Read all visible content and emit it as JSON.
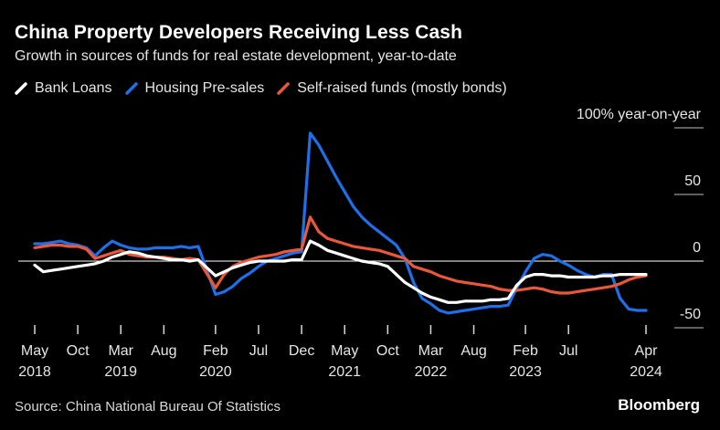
{
  "colors": {
    "background": "#000000",
    "bank_loans": "#ffffff",
    "housing_presales": "#1f6fe8",
    "self_raised": "#e8583a",
    "zero_line": "#ffffff"
  },
  "footer": {
    "source": "Source: China National Bureau Of Statistics",
    "brand": "Bloomberg"
  },
  "chart_data": {
    "type": "line",
    "title": "China Property Developers Receiving Less Cash",
    "subtitle": "Growth in sources of funds for real estate development, year-to-date",
    "ylabel": "year-on-year",
    "ylim": [
      -50,
      100
    ],
    "yticks": [
      {
        "value": 100,
        "label": "100% year-on-year"
      },
      {
        "value": 50,
        "label": "50"
      },
      {
        "value": 0,
        "label": "0"
      },
      {
        "value": -50,
        "label": "-50"
      }
    ],
    "xlim": [
      0,
      71
    ],
    "xticks": [
      {
        "value": 0,
        "line1": "May",
        "line2": "2018"
      },
      {
        "value": 5,
        "line1": "Oct",
        "line2": ""
      },
      {
        "value": 10,
        "line1": "Mar",
        "line2": "2019"
      },
      {
        "value": 15,
        "line1": "Aug",
        "line2": ""
      },
      {
        "value": 21,
        "line1": "Feb",
        "line2": "2020"
      },
      {
        "value": 26,
        "line1": "Jul",
        "line2": ""
      },
      {
        "value": 31,
        "line1": "Dec",
        "line2": ""
      },
      {
        "value": 36,
        "line1": "May",
        "line2": "2021"
      },
      {
        "value": 41,
        "line1": "Oct",
        "line2": ""
      },
      {
        "value": 46,
        "line1": "Mar",
        "line2": "2022"
      },
      {
        "value": 51,
        "line1": "Aug",
        "line2": ""
      },
      {
        "value": 57,
        "line1": "Feb",
        "line2": "2023"
      },
      {
        "value": 62,
        "line1": "Jul",
        "line2": ""
      },
      {
        "value": 71,
        "line1": "Apr",
        "line2": "2024"
      }
    ],
    "series": [
      {
        "name": "Housing Pre-sales",
        "color": "#1f6fe8",
        "points": [
          [
            0,
            13
          ],
          [
            1,
            13
          ],
          [
            2,
            14
          ],
          [
            3,
            15
          ],
          [
            4,
            13
          ],
          [
            5,
            12
          ],
          [
            6,
            10
          ],
          [
            7,
            4
          ],
          [
            8,
            10
          ],
          [
            9,
            15
          ],
          [
            10,
            12
          ],
          [
            11,
            10
          ],
          [
            12,
            9
          ],
          [
            13,
            9
          ],
          [
            14,
            10
          ],
          [
            15,
            10
          ],
          [
            16,
            10
          ],
          [
            17,
            11
          ],
          [
            18,
            10
          ],
          [
            19,
            11
          ],
          [
            21,
            -25
          ],
          [
            22,
            -23
          ],
          [
            23,
            -19
          ],
          [
            24,
            -13
          ],
          [
            25,
            -9
          ],
          [
            26,
            -4
          ],
          [
            27,
            0
          ],
          [
            28,
            2
          ],
          [
            29,
            4
          ],
          [
            30,
            6
          ],
          [
            31,
            7
          ],
          [
            32,
            96
          ],
          [
            33,
            87
          ],
          [
            34,
            75
          ],
          [
            35,
            63
          ],
          [
            36,
            52
          ],
          [
            37,
            41
          ],
          [
            38,
            33
          ],
          [
            39,
            27
          ],
          [
            40,
            22
          ],
          [
            41,
            17
          ],
          [
            42,
            12
          ],
          [
            43,
            2
          ],
          [
            44,
            -16
          ],
          [
            45,
            -28
          ],
          [
            46,
            -32
          ],
          [
            47,
            -37
          ],
          [
            48,
            -39
          ],
          [
            49,
            -38
          ],
          [
            50,
            -37
          ],
          [
            51,
            -36
          ],
          [
            52,
            -35
          ],
          [
            53,
            -34
          ],
          [
            54,
            -34
          ],
          [
            55,
            -33
          ],
          [
            56,
            -20
          ],
          [
            57,
            -8
          ],
          [
            58,
            2
          ],
          [
            59,
            5
          ],
          [
            60,
            4
          ],
          [
            61,
            0
          ],
          [
            62,
            -3
          ],
          [
            63,
            -7
          ],
          [
            64,
            -10
          ],
          [
            65,
            -12
          ],
          [
            66,
            -10
          ],
          [
            67,
            -10
          ],
          [
            68,
            -28
          ],
          [
            69,
            -36
          ],
          [
            70,
            -37
          ],
          [
            71,
            -37
          ]
        ]
      },
      {
        "name": "Self-raised funds (mostly bonds)",
        "color": "#e8583a",
        "points": [
          [
            0,
            10
          ],
          [
            1,
            11
          ],
          [
            2,
            12
          ],
          [
            3,
            12
          ],
          [
            4,
            11
          ],
          [
            5,
            11
          ],
          [
            6,
            9
          ],
          [
            7,
            2
          ],
          [
            8,
            4
          ],
          [
            9,
            6
          ],
          [
            10,
            8
          ],
          [
            11,
            5
          ],
          [
            12,
            4
          ],
          [
            13,
            3
          ],
          [
            14,
            3
          ],
          [
            15,
            3
          ],
          [
            16,
            2
          ],
          [
            17,
            1
          ],
          [
            18,
            2
          ],
          [
            19,
            1
          ],
          [
            21,
            -20
          ],
          [
            22,
            -10
          ],
          [
            23,
            -4
          ],
          [
            24,
            -1
          ],
          [
            25,
            1
          ],
          [
            26,
            3
          ],
          [
            27,
            4
          ],
          [
            28,
            5
          ],
          [
            29,
            7
          ],
          [
            30,
            8
          ],
          [
            31,
            9
          ],
          [
            32,
            33
          ],
          [
            33,
            22
          ],
          [
            34,
            17
          ],
          [
            35,
            15
          ],
          [
            36,
            13
          ],
          [
            37,
            11
          ],
          [
            38,
            10
          ],
          [
            39,
            9
          ],
          [
            40,
            8
          ],
          [
            41,
            6
          ],
          [
            42,
            4
          ],
          [
            43,
            2
          ],
          [
            44,
            -4
          ],
          [
            45,
            -6
          ],
          [
            46,
            -8
          ],
          [
            47,
            -11
          ],
          [
            48,
            -13
          ],
          [
            49,
            -15
          ],
          [
            50,
            -16
          ],
          [
            51,
            -17
          ],
          [
            52,
            -18
          ],
          [
            53,
            -19
          ],
          [
            54,
            -21
          ],
          [
            55,
            -22
          ],
          [
            56,
            -22
          ],
          [
            57,
            -21
          ],
          [
            58,
            -20
          ],
          [
            59,
            -21
          ],
          [
            60,
            -23
          ],
          [
            61,
            -24
          ],
          [
            62,
            -24
          ],
          [
            63,
            -23
          ],
          [
            64,
            -22
          ],
          [
            65,
            -21
          ],
          [
            66,
            -20
          ],
          [
            67,
            -19
          ],
          [
            68,
            -17
          ],
          [
            69,
            -14
          ],
          [
            70,
            -12
          ],
          [
            71,
            -11
          ]
        ]
      },
      {
        "name": "Bank Loans",
        "color": "#ffffff",
        "points": [
          [
            0,
            -3
          ],
          [
            1,
            -8
          ],
          [
            2,
            -7
          ],
          [
            3,
            -6
          ],
          [
            4,
            -5
          ],
          [
            5,
            -4
          ],
          [
            6,
            -3
          ],
          [
            7,
            -2
          ],
          [
            8,
            0
          ],
          [
            9,
            3
          ],
          [
            10,
            5
          ],
          [
            11,
            7
          ],
          [
            12,
            6
          ],
          [
            13,
            4
          ],
          [
            14,
            3
          ],
          [
            15,
            2
          ],
          [
            16,
            1
          ],
          [
            17,
            1
          ],
          [
            18,
            0
          ],
          [
            19,
            1
          ],
          [
            21,
            -11
          ],
          [
            22,
            -8
          ],
          [
            23,
            -5
          ],
          [
            24,
            -3
          ],
          [
            25,
            -1
          ],
          [
            26,
            0
          ],
          [
            27,
            0
          ],
          [
            28,
            0
          ],
          [
            29,
            0
          ],
          [
            30,
            1
          ],
          [
            31,
            1
          ],
          [
            32,
            15
          ],
          [
            33,
            12
          ],
          [
            34,
            8
          ],
          [
            35,
            6
          ],
          [
            36,
            4
          ],
          [
            37,
            2
          ],
          [
            38,
            0
          ],
          [
            39,
            -1
          ],
          [
            40,
            -2
          ],
          [
            41,
            -4
          ],
          [
            42,
            -10
          ],
          [
            43,
            -16
          ],
          [
            44,
            -20
          ],
          [
            45,
            -24
          ],
          [
            46,
            -27
          ],
          [
            47,
            -29
          ],
          [
            48,
            -31
          ],
          [
            49,
            -31
          ],
          [
            50,
            -30
          ],
          [
            51,
            -30
          ],
          [
            52,
            -30
          ],
          [
            53,
            -29
          ],
          [
            54,
            -29
          ],
          [
            55,
            -28
          ],
          [
            56,
            -18
          ],
          [
            57,
            -12
          ],
          [
            58,
            -10
          ],
          [
            59,
            -10
          ],
          [
            60,
            -11
          ],
          [
            61,
            -11
          ],
          [
            62,
            -12
          ],
          [
            63,
            -12
          ],
          [
            64,
            -12
          ],
          [
            65,
            -12
          ],
          [
            66,
            -11
          ],
          [
            67,
            -11
          ],
          [
            68,
            -10
          ],
          [
            69,
            -10
          ],
          [
            70,
            -10
          ],
          [
            71,
            -10
          ]
        ]
      }
    ],
    "legend": [
      {
        "label": "Bank Loans",
        "color": "#ffffff"
      },
      {
        "label": "Housing Pre-sales",
        "color": "#1f6fe8"
      },
      {
        "label": "Self-raised funds (mostly bonds)",
        "color": "#e8583a"
      }
    ]
  }
}
